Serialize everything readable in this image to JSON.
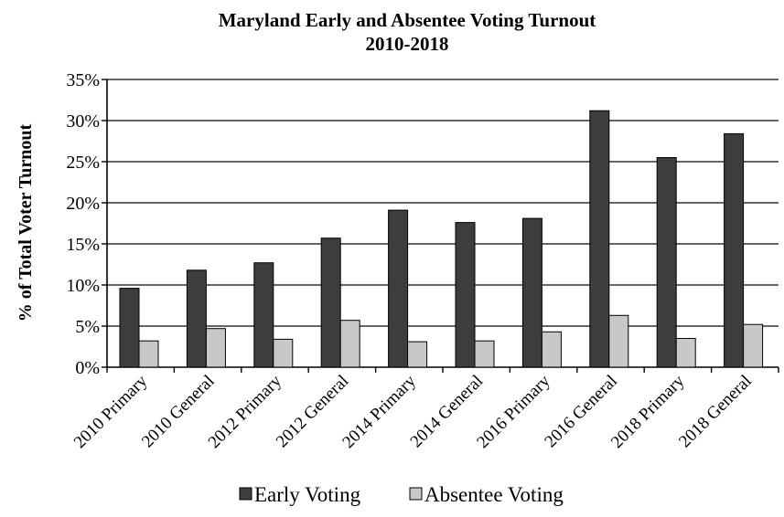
{
  "chart_data": {
    "type": "bar",
    "title": "Maryland Early and Absentee Voting Turnout",
    "subtitle": "2010-2018",
    "xlabel": "",
    "ylabel": "% of Total Voter Turnout",
    "ylim": [
      0,
      35
    ],
    "yticks": [
      "0%",
      "5%",
      "10%",
      "15%",
      "20%",
      "25%",
      "30%",
      "35%"
    ],
    "grid": true,
    "legend_position": "bottom",
    "categories": [
      "2010 Primary",
      "2010 General",
      "2012 Primary",
      "2012 General",
      "2014 Primary",
      "2014 General",
      "2016 Primary",
      "2016 General",
      "2018 Primary",
      "2018 General"
    ],
    "series": [
      {
        "name": "Early Voting",
        "color": "#3d3d3d",
        "values": [
          9.6,
          11.8,
          12.7,
          15.7,
          19.1,
          17.6,
          18.1,
          31.2,
          25.5,
          28.4
        ]
      },
      {
        "name": "Absentee Voting",
        "color": "#c8c8c8",
        "values": [
          3.2,
          4.7,
          3.4,
          5.7,
          3.1,
          3.2,
          4.3,
          6.3,
          3.5,
          5.2
        ]
      }
    ]
  }
}
